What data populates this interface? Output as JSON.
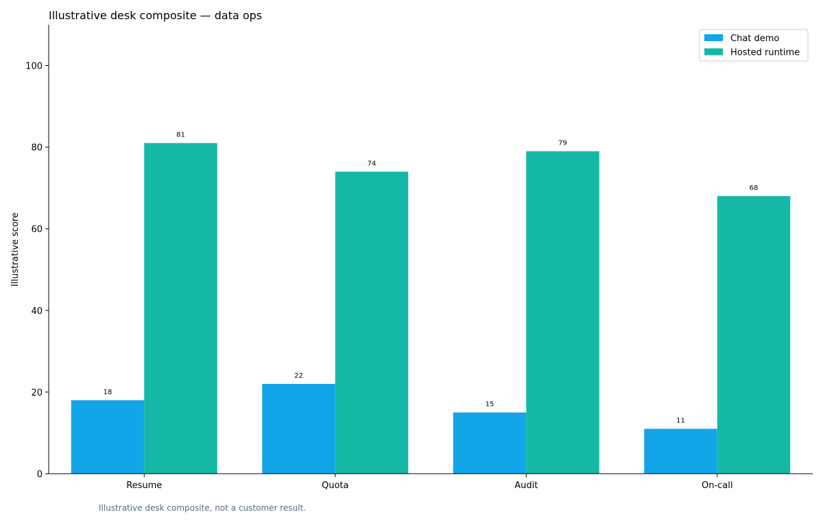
{
  "chart_data": {
    "type": "bar",
    "title": "Illustrative desk composite — data ops",
    "xlabel": "",
    "ylabel": "Illustrative score",
    "categories": [
      "Resume",
      "Quota",
      "Audit",
      "On-call"
    ],
    "series": [
      {
        "name": "Chat demo",
        "color": "#12a5e8",
        "values": [
          18,
          22,
          15,
          11
        ]
      },
      {
        "name": "Hosted runtime",
        "color": "#15b8a6",
        "values": [
          81,
          74,
          79,
          68
        ]
      }
    ],
    "ylim": [
      0,
      110
    ],
    "yticks": [
      0,
      20,
      40,
      60,
      80,
      100
    ],
    "grid": false,
    "legend_position": "top-right",
    "footnote": "Illustrative desk composite, not a customer result."
  }
}
